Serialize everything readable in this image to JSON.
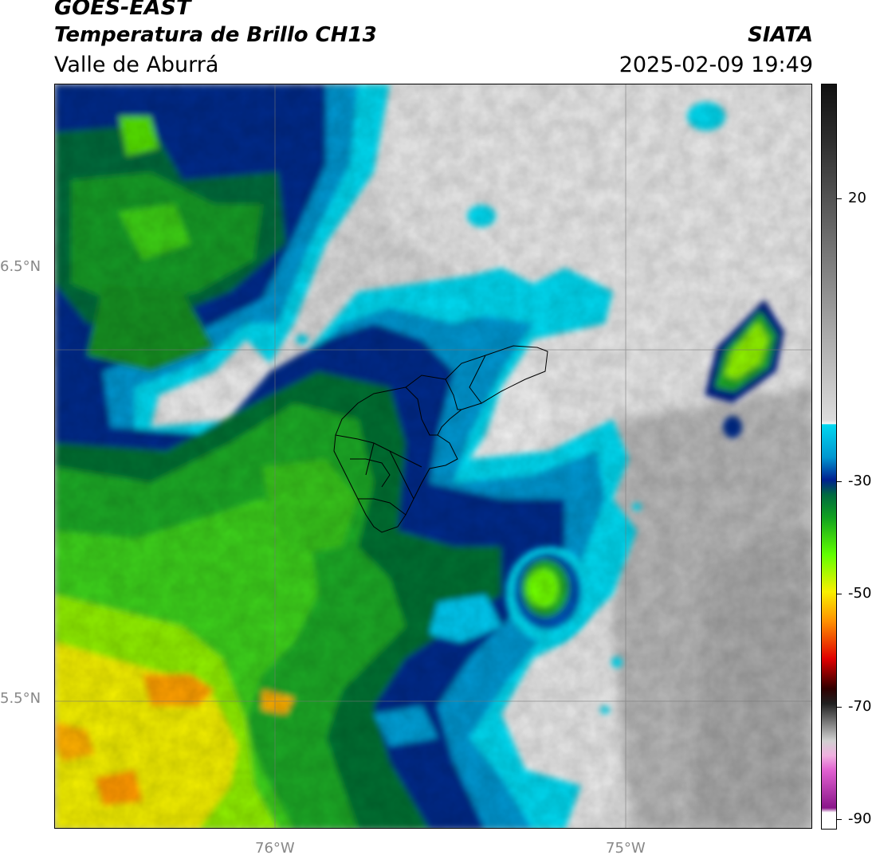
{
  "header": {
    "title": "GOES-EAST",
    "subtitle": "Temperatura de Brillo CH13",
    "region": "Valle de Aburrá",
    "organization": "SIATA",
    "timestamp": "2025-02-09 19:49"
  },
  "map": {
    "lat_labels": [
      "6.5°N",
      "5.5°N"
    ],
    "lon_labels": [
      "76°W",
      "75°W"
    ],
    "gridlines": true,
    "features": [
      "cloud-top-brightness-temperature-field",
      "valle-de-aburra-municipal-boundaries"
    ]
  },
  "colorbar": {
    "ticks": [
      "20",
      "-30",
      "-50",
      "-70",
      "-90"
    ],
    "min": -92,
    "max": 40,
    "colors": {
      "warm_clear": "#f0f0f0",
      "dark_gray": "#202020",
      "cyan": "#00d8f0",
      "dark_blue": "#002080",
      "green": "#20c020",
      "lime": "#60ff00",
      "yellow": "#f8f000",
      "orange": "#ff9000",
      "red": "#d80000",
      "black": "#000000",
      "pink": "#e060d0",
      "purple": "#8a168a"
    }
  }
}
